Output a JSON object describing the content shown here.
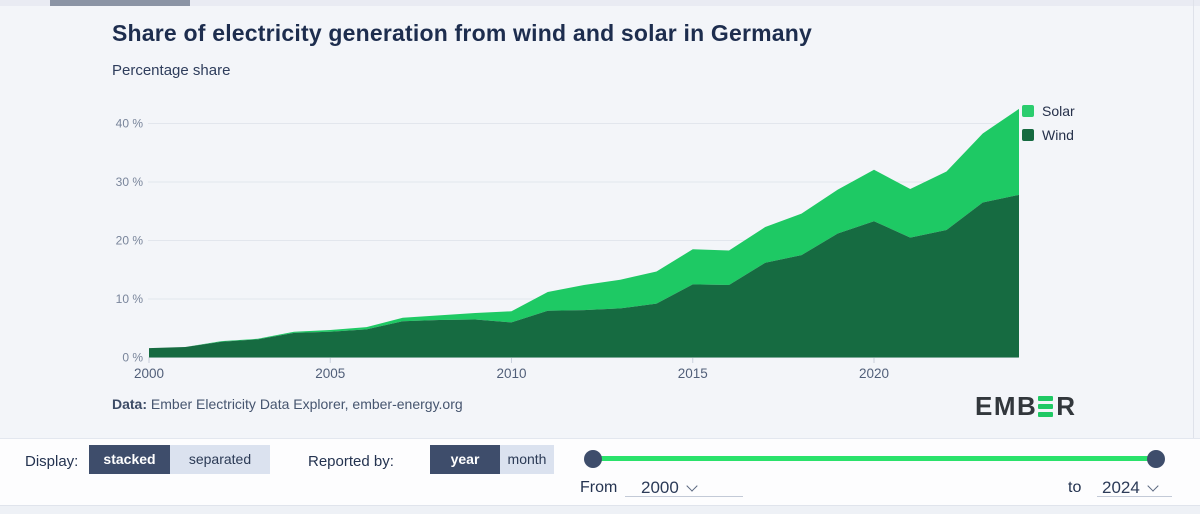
{
  "header": {
    "title": "Share of electricity generation from wind and solar in Germany",
    "subtitle": "Percentage share"
  },
  "chart_data": {
    "type": "area",
    "stacked": true,
    "title": "Share of electricity generation from wind and solar in Germany",
    "ylabel": "Percentage share",
    "xlabel": "",
    "ylim": [
      0,
      45
    ],
    "grid": "horizontal",
    "legend_position": "top-right",
    "x": [
      2000,
      2001,
      2002,
      2003,
      2004,
      2005,
      2006,
      2007,
      2008,
      2009,
      2010,
      2011,
      2012,
      2013,
      2014,
      2015,
      2016,
      2017,
      2018,
      2019,
      2020,
      2021,
      2022,
      2023,
      2024
    ],
    "series": [
      {
        "name": "Wind",
        "color": "#166b41",
        "values": [
          1.6,
          1.8,
          2.7,
          3.1,
          4.2,
          4.4,
          4.8,
          6.2,
          6.4,
          6.5,
          6.0,
          8.0,
          8.1,
          8.4,
          9.2,
          12.5,
          12.4,
          16.2,
          17.5,
          21.2,
          23.3,
          20.5,
          21.8,
          26.5,
          27.8
        ]
      },
      {
        "name": "Solar",
        "color": "#1ec964",
        "values": [
          0.0,
          0.0,
          0.1,
          0.1,
          0.2,
          0.3,
          0.4,
          0.6,
          0.8,
          1.1,
          1.9,
          3.2,
          4.3,
          4.9,
          5.5,
          6.0,
          5.9,
          6.1,
          7.1,
          7.5,
          8.8,
          8.3,
          10.0,
          11.8,
          14.7
        ]
      }
    ],
    "y_ticks": [
      0,
      10,
      20,
      30,
      40
    ],
    "y_tick_labels": [
      "0 %",
      "10 %",
      "20 %",
      "30 %",
      "40 %"
    ],
    "x_ticks": [
      2000,
      2005,
      2010,
      2015,
      2020
    ],
    "x_tick_labels": [
      "2000",
      "2005",
      "2010",
      "2015",
      "2020"
    ]
  },
  "legend": {
    "items": [
      {
        "label": "Solar",
        "color": "#2bcd6e"
      },
      {
        "label": "Wind",
        "color": "#156a40"
      }
    ]
  },
  "attribution": {
    "prefix": "Data:",
    "text": " Ember Electricity Data Explorer, ember-energy.org"
  },
  "logo": {
    "left": "EMB",
    "right": "R"
  },
  "controls": {
    "display": {
      "label": "Display:",
      "options": [
        {
          "label": "stacked",
          "selected": true
        },
        {
          "label": "separated",
          "selected": false
        }
      ]
    },
    "reported_by": {
      "label": "Reported by:",
      "options": [
        {
          "label": "year",
          "selected": true
        },
        {
          "label": "month",
          "selected": false
        }
      ]
    },
    "range": {
      "from_label": "From",
      "from_value": "2000",
      "to_label": "to",
      "to_value": "2024"
    }
  },
  "colors": {
    "accent_green": "#2ae26b",
    "navy": "#3e4d6b",
    "background": "#f3f5f9"
  }
}
